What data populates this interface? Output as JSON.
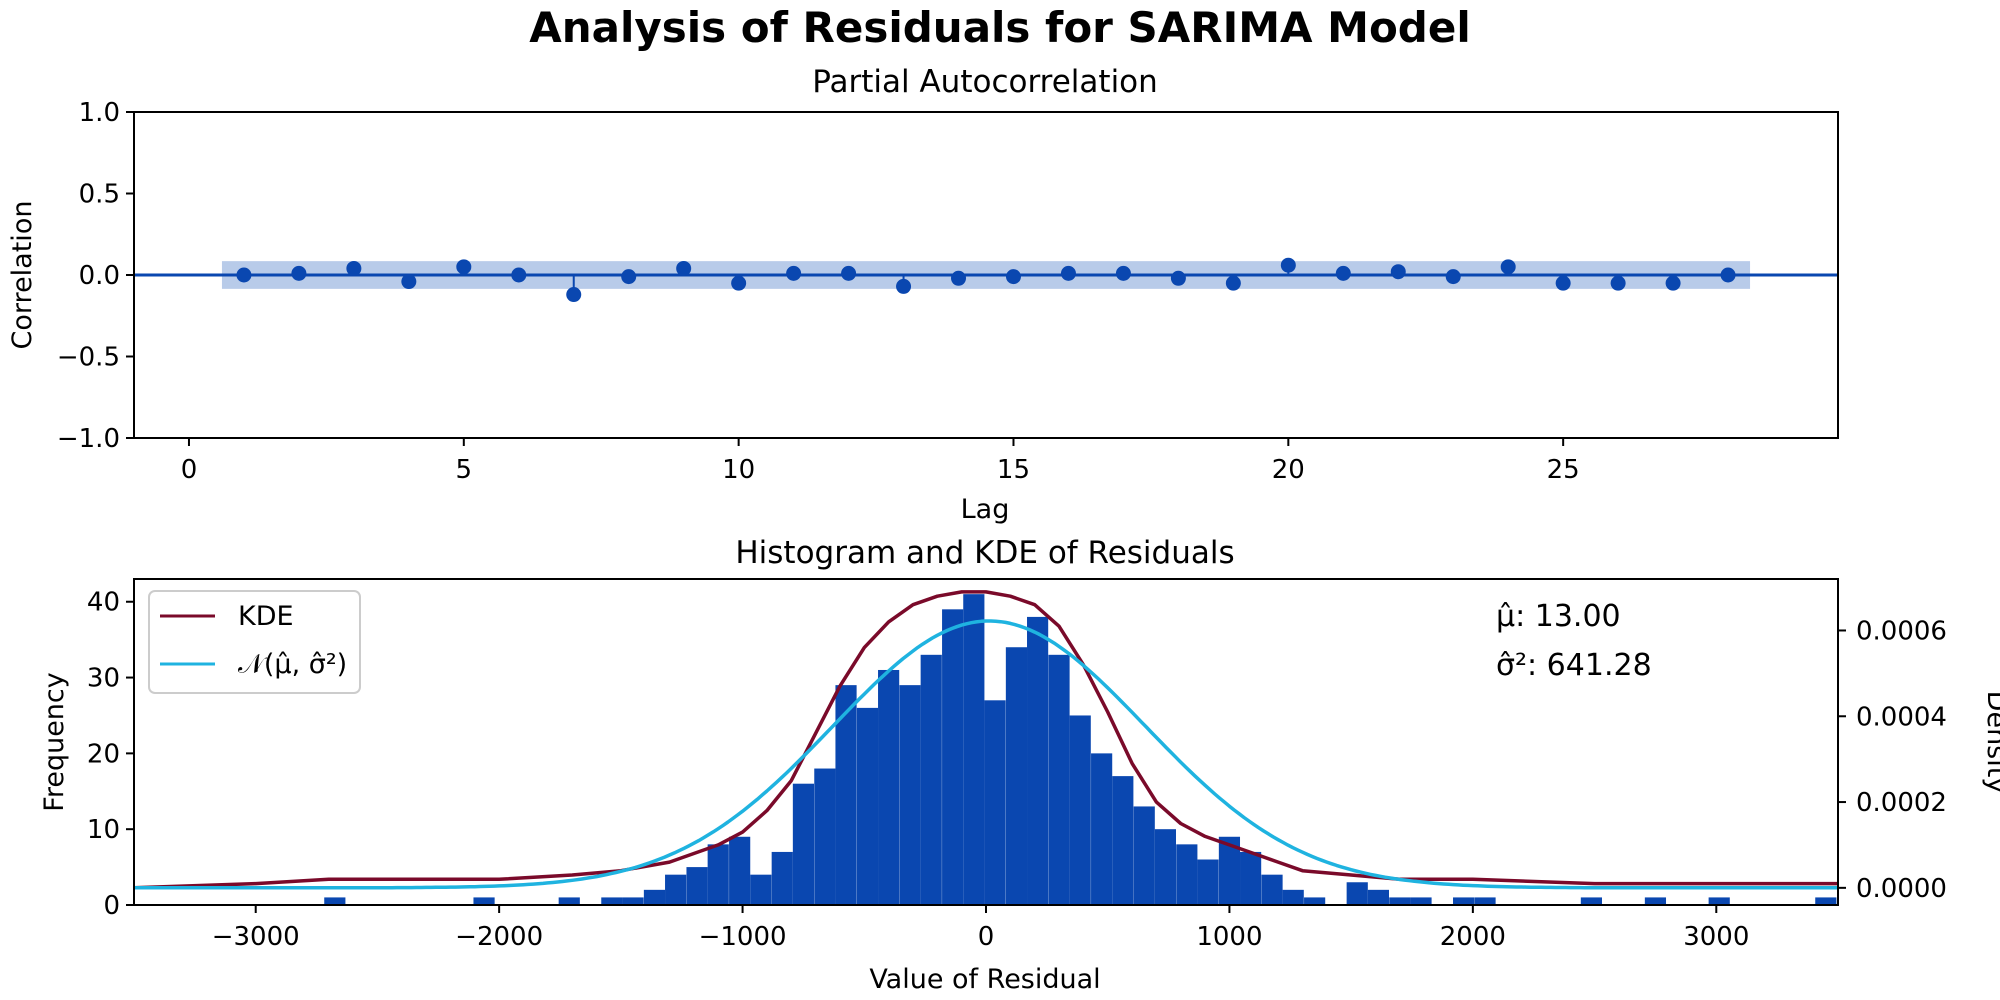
{
  "figure": {
    "title": "Analysis of Residuals for SARIMA Model"
  },
  "chart_data": [
    {
      "type": "scatter",
      "subtype": "partial-autocorrelation-stem",
      "title": "Partial Autocorrelation",
      "xlabel": "Lag",
      "ylabel": "Correlation",
      "xlim": [
        -1,
        30
      ],
      "ylim": [
        -1.0,
        1.0
      ],
      "xticks": [
        0,
        5,
        10,
        15,
        20,
        25
      ],
      "yticks": [
        "1.0",
        "0.5",
        "0.0",
        "−0.5",
        "−1.0"
      ],
      "ytick_values": [
        1.0,
        0.5,
        0.0,
        -0.5,
        -1.0
      ],
      "confidence_band": [
        -0.085,
        0.085
      ],
      "band_x_range": [
        0.6,
        28.4
      ],
      "lags": [
        1,
        2,
        3,
        4,
        5,
        6,
        7,
        8,
        9,
        10,
        11,
        12,
        13,
        14,
        15,
        16,
        17,
        18,
        19,
        20,
        21,
        22,
        23,
        24,
        25,
        26,
        27,
        28
      ],
      "values": [
        0.0,
        0.01,
        0.04,
        -0.04,
        0.05,
        0.0,
        -0.12,
        -0.01,
        0.04,
        -0.05,
        0.01,
        0.01,
        -0.07,
        -0.02,
        -0.01,
        0.01,
        0.01,
        -0.02,
        -0.05,
        0.06,
        0.01,
        0.02,
        -0.01,
        0.05,
        -0.05,
        -0.05,
        -0.05,
        0.0
      ],
      "colors": {
        "points": "#0a47b0",
        "band": "#b8cbe9",
        "zero_line": "#0a47b0"
      }
    },
    {
      "type": "bar",
      "subtype": "histogram-with-kde",
      "title": "Histogram and KDE of Residuals",
      "xlabel": "Value of Residual",
      "ylabel": "Frequency",
      "ylabel_right": "Density",
      "xlim": [
        -3500,
        3500
      ],
      "ylim": [
        0,
        43
      ],
      "ylim_right": [
        -4e-05,
        0.00072
      ],
      "xticks": [
        "−3000",
        "−2000",
        "−1000",
        "0",
        "1000",
        "2000",
        "3000"
      ],
      "xtick_values": [
        -3000,
        -2000,
        -1000,
        0,
        1000,
        2000,
        3000
      ],
      "yticks": [
        0,
        10,
        20,
        30,
        40
      ],
      "yticks_right": [
        "0.0000",
        "0.0002",
        "0.0004",
        "0.0006"
      ],
      "ytick_right_values": [
        0.0,
        0.0002,
        0.0004,
        0.0006
      ],
      "bin_width": 87,
      "bins": [
        [
          -2675,
          1
        ],
        [
          -2062,
          1
        ],
        [
          -1712,
          1
        ],
        [
          -1537,
          1
        ],
        [
          -1450,
          1
        ],
        [
          -1362,
          2
        ],
        [
          -1275,
          4
        ],
        [
          -1187,
          5
        ],
        [
          -1100,
          8
        ],
        [
          -1012,
          9
        ],
        [
          -925,
          4
        ],
        [
          -837,
          7
        ],
        [
          -750,
          16
        ],
        [
          -662,
          18
        ],
        [
          -575,
          29
        ],
        [
          -487,
          26
        ],
        [
          -400,
          31
        ],
        [
          -312,
          29
        ],
        [
          -225,
          33
        ],
        [
          -137,
          39
        ],
        [
          -50,
          41
        ],
        [
          37,
          27
        ],
        [
          125,
          34
        ],
        [
          212,
          38
        ],
        [
          300,
          33
        ],
        [
          387,
          25
        ],
        [
          475,
          20
        ],
        [
          562,
          17
        ],
        [
          650,
          13
        ],
        [
          737,
          10
        ],
        [
          825,
          8
        ],
        [
          912,
          6
        ],
        [
          1000,
          9
        ],
        [
          1087,
          7
        ],
        [
          1175,
          4
        ],
        [
          1262,
          2
        ],
        [
          1350,
          1
        ],
        [
          1525,
          3
        ],
        [
          1612,
          2
        ],
        [
          1700,
          1
        ],
        [
          1787,
          1
        ],
        [
          1962,
          1
        ],
        [
          2050,
          1
        ],
        [
          2487,
          1
        ],
        [
          2750,
          1
        ],
        [
          3012,
          1
        ],
        [
          3450,
          1
        ]
      ],
      "kde": {
        "x": [
          -3500,
          -3000,
          -2700,
          -2400,
          -2000,
          -1700,
          -1500,
          -1300,
          -1100,
          -1000,
          -900,
          -800,
          -700,
          -600,
          -500,
          -400,
          -300,
          -200,
          -100,
          0,
          100,
          200,
          300,
          400,
          500,
          600,
          700,
          800,
          900,
          1000,
          1100,
          1200,
          1300,
          1500,
          1700,
          2000,
          2500,
          3000,
          3500
        ],
        "y": [
          0.0,
          1e-05,
          2e-05,
          2e-05,
          2e-05,
          3e-05,
          4e-05,
          6e-05,
          0.0001,
          0.00013,
          0.00018,
          0.00025,
          0.00036,
          0.00047,
          0.00056,
          0.00062,
          0.00066,
          0.00068,
          0.00069,
          0.00069,
          0.00068,
          0.00066,
          0.00061,
          0.00052,
          0.00041,
          0.00029,
          0.0002,
          0.00015,
          0.00012,
          0.0001,
          8e-05,
          6e-05,
          4e-05,
          3e-05,
          2e-05,
          2e-05,
          1e-05,
          1e-05,
          1e-05
        ]
      },
      "normal_fit": {
        "mean": 13.0,
        "std": 641.28
      },
      "legend": [
        "KDE",
        "𝒩(μ̂, σ̂²)"
      ],
      "legend_position": "upper-left",
      "annotations": [
        "μ̂: 13.00",
        "σ̂²: 641.28"
      ],
      "colors": {
        "bars": "#0a47b0",
        "kde": "#7a0a2a",
        "normal": "#1fb3e0"
      }
    }
  ]
}
